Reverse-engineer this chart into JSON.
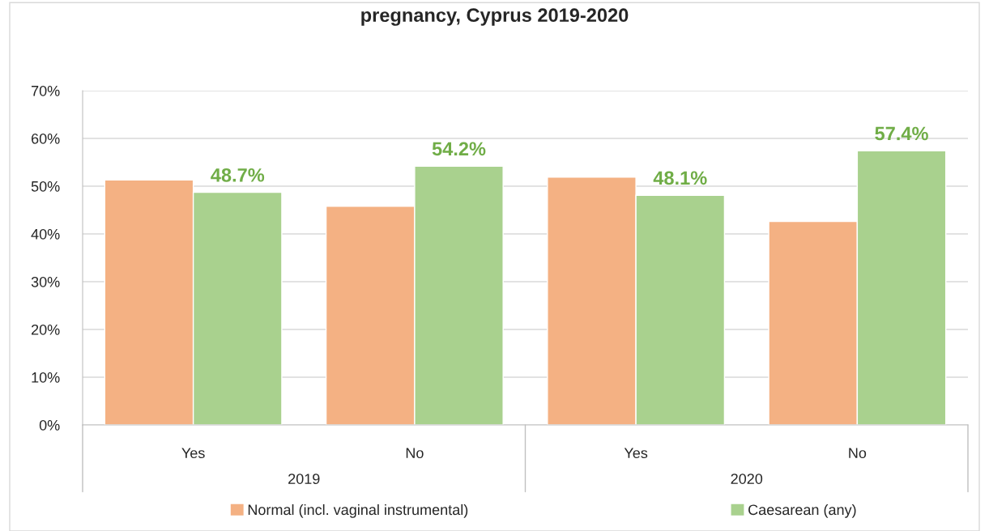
{
  "chart_data": {
    "type": "bar",
    "title": "pregnancy, Cyprus 2019-2020",
    "categories": [
      "Yes",
      "No",
      "Yes",
      "No"
    ],
    "annotations": [
      "2019",
      "2020"
    ],
    "series": [
      {
        "name": "Normal (incl. vaginal instrumental)",
        "color": "#f4b183",
        "values": [
          51.3,
          45.8,
          51.9,
          42.6
        ]
      },
      {
        "name": "Caesarean (any)",
        "color": "#a9d18e",
        "values": [
          48.7,
          54.2,
          48.1,
          57.4
        ],
        "value_labels": [
          "48.7%",
          "54.2%",
          "48.1%",
          "57.4%"
        ]
      }
    ],
    "ylim": [
      0,
      70
    ],
    "yticks": [
      {
        "value": 0,
        "label": "0%"
      },
      {
        "value": 10,
        "label": "10%"
      },
      {
        "value": 20,
        "label": "20%"
      },
      {
        "value": 30,
        "label": "30%"
      },
      {
        "value": 40,
        "label": "40%"
      },
      {
        "value": 50,
        "label": "50%"
      },
      {
        "value": 60,
        "label": "60%"
      },
      {
        "value": 70,
        "label": "70%"
      }
    ],
    "grid": "y",
    "legend": "bottom"
  }
}
